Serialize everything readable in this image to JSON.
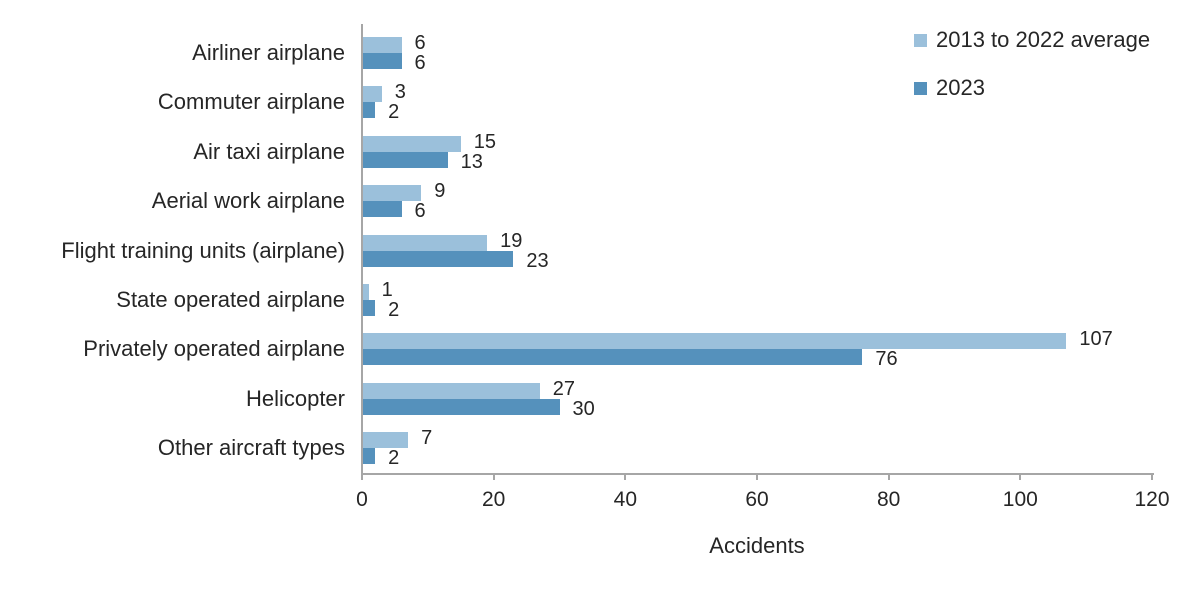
{
  "chart_data": {
    "type": "bar",
    "orientation": "horizontal",
    "title": "",
    "xlabel": "Accidents",
    "ylabel": "",
    "xlim": [
      0,
      120
    ],
    "xticks": [
      0,
      20,
      40,
      60,
      80,
      100,
      120
    ],
    "grid": false,
    "legend_position": "top-right",
    "value_labels_visible": true,
    "categories": [
      "Airliner airplane",
      "Commuter airplane",
      "Air taxi airplane",
      "Aerial work airplane",
      "Flight training units (airplane)",
      "State operated airplane",
      "Privately operated airplane",
      "Helicopter",
      "Other aircraft types"
    ],
    "series": [
      {
        "name": "2013 to 2022 average",
        "color": "#9bc0db",
        "values": [
          6,
          3,
          15,
          9,
          19,
          1,
          107,
          27,
          7
        ]
      },
      {
        "name": "2023",
        "color": "#5591bc",
        "values": [
          6,
          2,
          13,
          6,
          23,
          2,
          76,
          30,
          2
        ]
      }
    ]
  },
  "colors": {
    "axis": "#a6a6a6",
    "text": "#262626",
    "background": "#ffffff"
  }
}
